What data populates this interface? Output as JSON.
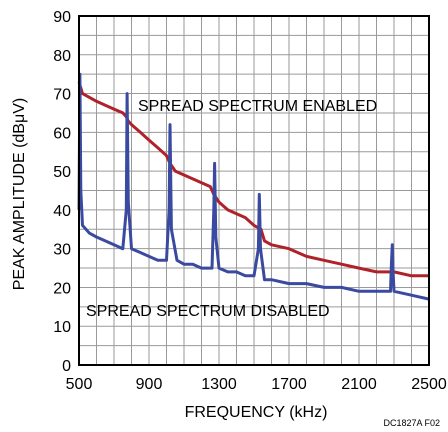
{
  "chart_data": {
    "type": "line",
    "xlabel": "FREQUENCY (kHz)",
    "ylabel": "PEAK AMPLITUDE (dBμV)",
    "xlim": [
      500,
      2500
    ],
    "ylim": [
      0,
      90
    ],
    "x_ticks": [
      500,
      900,
      1300,
      1700,
      2100,
      2500
    ],
    "y_ticks": [
      0,
      10,
      20,
      30,
      40,
      50,
      60,
      70,
      80,
      90
    ],
    "grid": true,
    "annotations": [
      "SPREAD SPECTRUM ENABLED",
      "SPREAD SPECTRUM DISABLED"
    ],
    "footnote": "DC1827A F02",
    "series": [
      {
        "name": "SPREAD SPECTRUM ENABLED",
        "color": "#b0222a",
        "points": [
          [
            500,
            73
          ],
          [
            520,
            70
          ],
          [
            560,
            69
          ],
          [
            600,
            68
          ],
          [
            650,
            67
          ],
          [
            700,
            66
          ],
          [
            750,
            65
          ],
          [
            770,
            64
          ],
          [
            780,
            63
          ],
          [
            800,
            62
          ],
          [
            850,
            60
          ],
          [
            900,
            58
          ],
          [
            950,
            56
          ],
          [
            1000,
            54
          ],
          [
            1020,
            52
          ],
          [
            1050,
            50
          ],
          [
            1100,
            49
          ],
          [
            1150,
            48
          ],
          [
            1200,
            47
          ],
          [
            1250,
            46
          ],
          [
            1270,
            44
          ],
          [
            1300,
            42
          ],
          [
            1350,
            40
          ],
          [
            1400,
            39
          ],
          [
            1450,
            38
          ],
          [
            1500,
            36
          ],
          [
            1540,
            35
          ],
          [
            1560,
            32
          ],
          [
            1600,
            31
          ],
          [
            1700,
            30
          ],
          [
            1800,
            28
          ],
          [
            1900,
            27
          ],
          [
            2000,
            26
          ],
          [
            2100,
            25
          ],
          [
            2200,
            24
          ],
          [
            2300,
            24
          ],
          [
            2400,
            23
          ],
          [
            2500,
            23
          ]
        ]
      },
      {
        "name": "SPREAD SPECTRUM DISABLED",
        "color": "#3a4aa0",
        "points": [
          [
            500,
            40
          ],
          [
            505,
            75
          ],
          [
            510,
            45
          ],
          [
            520,
            36
          ],
          [
            560,
            34
          ],
          [
            600,
            33
          ],
          [
            650,
            32
          ],
          [
            700,
            31
          ],
          [
            750,
            30
          ],
          [
            770,
            40
          ],
          [
            775,
            70
          ],
          [
            782,
            42
          ],
          [
            800,
            30
          ],
          [
            850,
            29
          ],
          [
            900,
            28
          ],
          [
            950,
            27
          ],
          [
            1000,
            27
          ],
          [
            1015,
            40
          ],
          [
            1020,
            62
          ],
          [
            1028,
            35
          ],
          [
            1060,
            27
          ],
          [
            1100,
            26
          ],
          [
            1150,
            26
          ],
          [
            1200,
            25
          ],
          [
            1260,
            25
          ],
          [
            1270,
            40
          ],
          [
            1275,
            52
          ],
          [
            1282,
            33
          ],
          [
            1300,
            25
          ],
          [
            1350,
            24
          ],
          [
            1400,
            24
          ],
          [
            1450,
            23
          ],
          [
            1500,
            23
          ],
          [
            1525,
            30
          ],
          [
            1530,
            44
          ],
          [
            1537,
            30
          ],
          [
            1560,
            22
          ],
          [
            1600,
            22
          ],
          [
            1700,
            21
          ],
          [
            1800,
            21
          ],
          [
            1900,
            20
          ],
          [
            2000,
            20
          ],
          [
            2100,
            19
          ],
          [
            2200,
            19
          ],
          [
            2280,
            19
          ],
          [
            2285,
            26
          ],
          [
            2290,
            31
          ],
          [
            2295,
            24
          ],
          [
            2300,
            19
          ],
          [
            2400,
            18
          ],
          [
            2500,
            17
          ]
        ]
      }
    ]
  }
}
